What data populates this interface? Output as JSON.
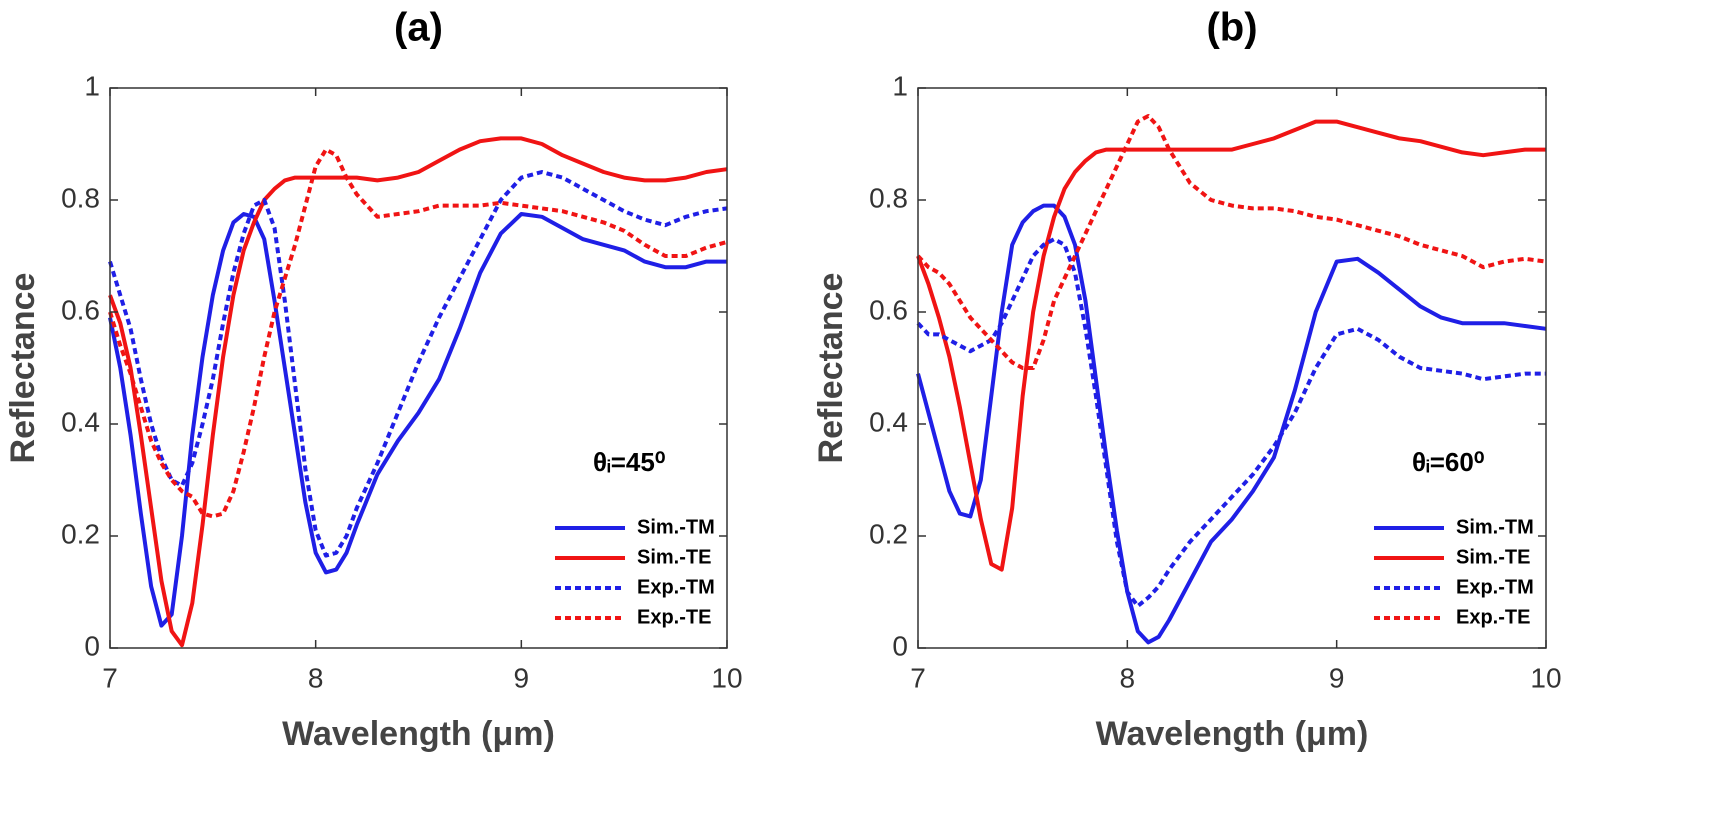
{
  "chart_data": [
    {
      "type": "line",
      "title": "(a)",
      "xlabel": "Wavelength (μm)",
      "ylabel": "Reflectance",
      "annotation": "θᵢ=45⁰",
      "xlim": [
        7,
        10
      ],
      "ylim": [
        0,
        1
      ],
      "xticks": [
        7,
        8,
        9,
        10
      ],
      "yticks": [
        0,
        0.2,
        0.4,
        0.6,
        0.8,
        1
      ],
      "grid": false,
      "legend": "lower right",
      "x": [
        7,
        7.05,
        7.1,
        7.15,
        7.2,
        7.25,
        7.3,
        7.35,
        7.4,
        7.45,
        7.5,
        7.55,
        7.6,
        7.65,
        7.7,
        7.75,
        7.8,
        7.85,
        7.9,
        7.95,
        8,
        8.05,
        8.1,
        8.15,
        8.2,
        8.3,
        8.4,
        8.5,
        8.6,
        8.7,
        8.8,
        8.9,
        9,
        9.1,
        9.2,
        9.3,
        9.4,
        9.5,
        9.6,
        9.7,
        9.8,
        9.9,
        10
      ],
      "series": [
        {
          "name": "Sim.-TM",
          "color": "#1f1fe6",
          "linestyle": "solid",
          "values": [
            0.59,
            0.5,
            0.38,
            0.24,
            0.11,
            0.04,
            0.06,
            0.2,
            0.38,
            0.52,
            0.63,
            0.71,
            0.76,
            0.775,
            0.77,
            0.73,
            0.62,
            0.5,
            0.38,
            0.26,
            0.17,
            0.135,
            0.14,
            0.17,
            0.22,
            0.31,
            0.37,
            0.42,
            0.48,
            0.57,
            0.67,
            0.74,
            0.775,
            0.77,
            0.75,
            0.73,
            0.72,
            0.71,
            0.69,
            0.68,
            0.68,
            0.69,
            0.69
          ]
        },
        {
          "name": "Sim.-TE",
          "color": "#f01414",
          "linestyle": "solid",
          "values": [
            0.63,
            0.58,
            0.5,
            0.38,
            0.25,
            0.12,
            0.03,
            0.005,
            0.08,
            0.22,
            0.38,
            0.52,
            0.63,
            0.71,
            0.76,
            0.8,
            0.82,
            0.835,
            0.84,
            0.84,
            0.84,
            0.84,
            0.84,
            0.84,
            0.84,
            0.835,
            0.84,
            0.85,
            0.87,
            0.89,
            0.905,
            0.91,
            0.91,
            0.9,
            0.88,
            0.865,
            0.85,
            0.84,
            0.835,
            0.835,
            0.84,
            0.85,
            0.855
          ]
        },
        {
          "name": "Exp.-TM",
          "color": "#1f1fe6",
          "linestyle": "dashed",
          "values": [
            0.69,
            0.63,
            0.57,
            0.48,
            0.4,
            0.34,
            0.3,
            0.29,
            0.33,
            0.4,
            0.48,
            0.58,
            0.67,
            0.74,
            0.79,
            0.8,
            0.75,
            0.62,
            0.47,
            0.32,
            0.21,
            0.165,
            0.17,
            0.2,
            0.25,
            0.33,
            0.42,
            0.51,
            0.59,
            0.66,
            0.73,
            0.8,
            0.84,
            0.85,
            0.84,
            0.82,
            0.8,
            0.78,
            0.765,
            0.755,
            0.77,
            0.78,
            0.785
          ]
        },
        {
          "name": "Exp.-TE",
          "color": "#f01414",
          "linestyle": "dashed",
          "values": [
            0.6,
            0.54,
            0.49,
            0.43,
            0.37,
            0.33,
            0.3,
            0.28,
            0.27,
            0.24,
            0.235,
            0.24,
            0.28,
            0.35,
            0.43,
            0.52,
            0.6,
            0.66,
            0.72,
            0.79,
            0.86,
            0.89,
            0.88,
            0.84,
            0.81,
            0.77,
            0.775,
            0.78,
            0.79,
            0.79,
            0.79,
            0.795,
            0.79,
            0.785,
            0.78,
            0.77,
            0.76,
            0.745,
            0.72,
            0.7,
            0.7,
            0.715,
            0.725
          ]
        }
      ]
    },
    {
      "type": "line",
      "title": "(b)",
      "xlabel": "Wavelength (μm)",
      "ylabel": "Reflectance",
      "annotation": "θᵢ=60⁰",
      "xlim": [
        7,
        10
      ],
      "ylim": [
        0,
        1
      ],
      "xticks": [
        7,
        8,
        9,
        10
      ],
      "yticks": [
        0,
        0.2,
        0.4,
        0.6,
        0.8,
        1
      ],
      "grid": false,
      "legend": "lower right",
      "x": [
        7,
        7.05,
        7.1,
        7.15,
        7.2,
        7.25,
        7.3,
        7.35,
        7.4,
        7.45,
        7.5,
        7.55,
        7.6,
        7.65,
        7.7,
        7.75,
        7.8,
        7.85,
        7.9,
        7.95,
        8,
        8.05,
        8.1,
        8.15,
        8.2,
        8.3,
        8.4,
        8.5,
        8.6,
        8.7,
        8.8,
        8.9,
        9,
        9.1,
        9.2,
        9.3,
        9.4,
        9.5,
        9.6,
        9.7,
        9.8,
        9.9,
        10
      ],
      "series": [
        {
          "name": "Sim.-TM",
          "color": "#1f1fe6",
          "linestyle": "solid",
          "values": [
            0.49,
            0.42,
            0.35,
            0.28,
            0.24,
            0.235,
            0.3,
            0.45,
            0.6,
            0.72,
            0.76,
            0.78,
            0.79,
            0.79,
            0.77,
            0.72,
            0.62,
            0.48,
            0.34,
            0.21,
            0.1,
            0.03,
            0.01,
            0.02,
            0.05,
            0.12,
            0.19,
            0.23,
            0.28,
            0.34,
            0.46,
            0.6,
            0.69,
            0.695,
            0.67,
            0.64,
            0.61,
            0.59,
            0.58,
            0.58,
            0.58,
            0.575,
            0.57
          ]
        },
        {
          "name": "Sim.-TE",
          "color": "#f01414",
          "linestyle": "solid",
          "values": [
            0.7,
            0.65,
            0.59,
            0.52,
            0.43,
            0.33,
            0.23,
            0.15,
            0.14,
            0.25,
            0.45,
            0.6,
            0.7,
            0.77,
            0.82,
            0.85,
            0.87,
            0.885,
            0.89,
            0.89,
            0.89,
            0.89,
            0.89,
            0.89,
            0.89,
            0.89,
            0.89,
            0.89,
            0.9,
            0.91,
            0.925,
            0.94,
            0.94,
            0.93,
            0.92,
            0.91,
            0.905,
            0.895,
            0.885,
            0.88,
            0.885,
            0.89,
            0.89
          ]
        },
        {
          "name": "Exp.-TM",
          "color": "#1f1fe6",
          "linestyle": "dashed",
          "values": [
            0.58,
            0.56,
            0.56,
            0.55,
            0.54,
            0.53,
            0.54,
            0.55,
            0.58,
            0.62,
            0.66,
            0.7,
            0.72,
            0.73,
            0.72,
            0.67,
            0.57,
            0.45,
            0.32,
            0.19,
            0.1,
            0.075,
            0.09,
            0.11,
            0.14,
            0.19,
            0.23,
            0.27,
            0.31,
            0.36,
            0.42,
            0.5,
            0.56,
            0.57,
            0.55,
            0.52,
            0.5,
            0.495,
            0.49,
            0.48,
            0.485,
            0.49,
            0.49
          ]
        },
        {
          "name": "Exp.-TE",
          "color": "#f01414",
          "linestyle": "dashed",
          "values": [
            0.7,
            0.68,
            0.67,
            0.65,
            0.62,
            0.59,
            0.57,
            0.55,
            0.53,
            0.51,
            0.5,
            0.5,
            0.55,
            0.62,
            0.66,
            0.7,
            0.74,
            0.78,
            0.82,
            0.86,
            0.9,
            0.94,
            0.95,
            0.93,
            0.89,
            0.83,
            0.8,
            0.79,
            0.785,
            0.785,
            0.78,
            0.77,
            0.765,
            0.755,
            0.745,
            0.735,
            0.72,
            0.71,
            0.7,
            0.68,
            0.69,
            0.695,
            0.69
          ]
        }
      ]
    }
  ]
}
